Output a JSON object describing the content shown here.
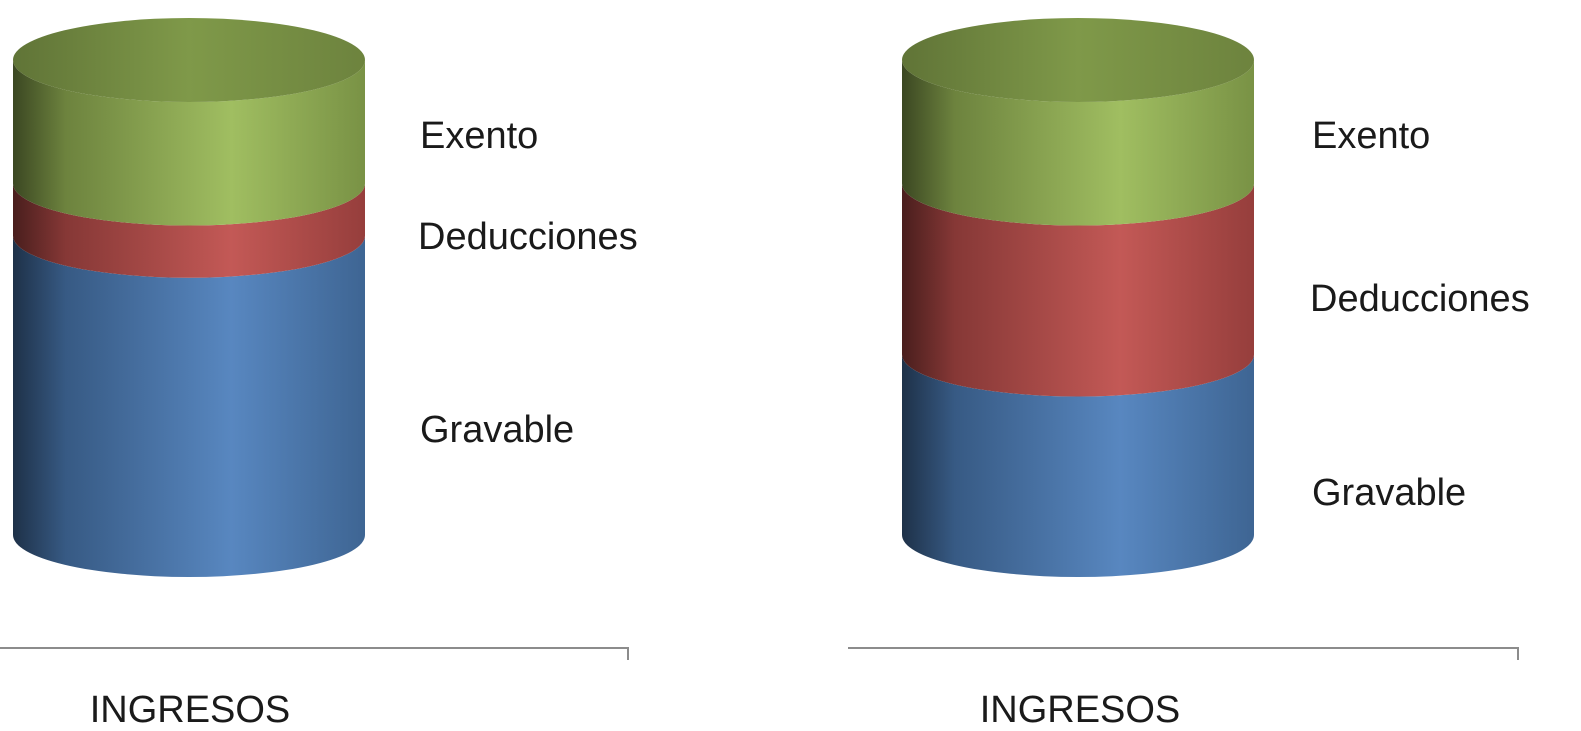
{
  "chart_data": [
    {
      "type": "bar",
      "style": "stacked-3d-cylinder",
      "categories": [
        "INGRESOS"
      ],
      "series": [
        {
          "name": "Gravable",
          "values": [
            63
          ]
        },
        {
          "name": "Deducciones",
          "values": [
            11
          ]
        },
        {
          "name": "Exento",
          "values": [
            26
          ]
        }
      ],
      "colors": {
        "Gravable": "#4f81bd",
        "Deducciones": "#c0504d",
        "Exento": "#9bbb59"
      },
      "legend_placement": "right"
    },
    {
      "type": "bar",
      "style": "stacked-3d-cylinder",
      "categories": [
        "INGRESOS"
      ],
      "series": [
        {
          "name": "Gravable",
          "values": [
            38
          ]
        },
        {
          "name": "Deducciones",
          "values": [
            36
          ]
        },
        {
          "name": "Exento",
          "values": [
            26
          ]
        }
      ],
      "colors": {
        "Gravable": "#4f81bd",
        "Deducciones": "#c0504d",
        "Exento": "#9bbb59"
      },
      "legend_placement": "right"
    }
  ]
}
